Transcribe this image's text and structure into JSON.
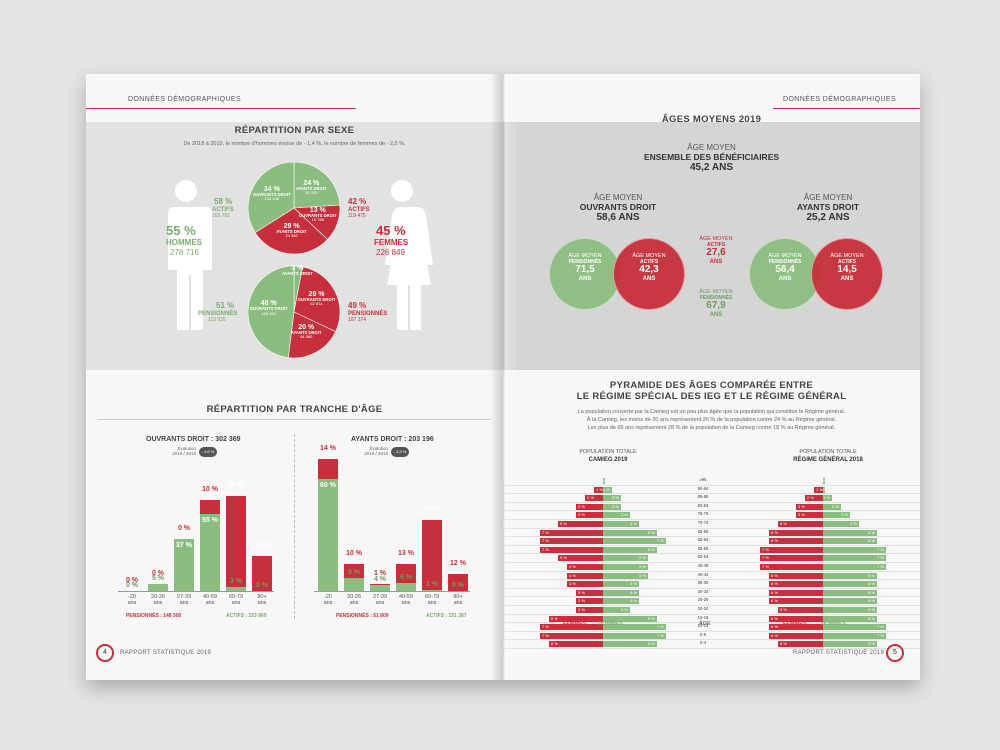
{
  "left": {
    "header": "DONNÉES DÉMOGRAPHIQUES",
    "sexe": {
      "title": "RÉPARTITION PAR SEXE",
      "subtitle": "De 2018 à 2019, le nombre d'hommes évolue de - 1,4  %, le nombre de femmes de - 2,2  %.",
      "hommes": {
        "pct": "55 %",
        "label": "HOMMES",
        "count": "278 716"
      },
      "femmes": {
        "pct": "45 %",
        "label": "FEMMES",
        "count": "226 849"
      },
      "actifs_h": {
        "pct": "58 %",
        "label": "ACTIFS",
        "count": "165 781"
      },
      "actifs_f": {
        "pct": "42 %",
        "label": "ACTIFS",
        "count": "119 475"
      },
      "pens_h": {
        "pct": "51 %",
        "label": "PENSIONNÉS",
        "count": "112 935"
      },
      "pens_f": {
        "pct": "49 %",
        "label": "PENSIONNÉS",
        "count": "107 374"
      },
      "pie1": [
        {
          "pct": "24 %",
          "label": "AYANTS DROIT",
          "sub": "31 333"
        },
        {
          "pct": "13 %",
          "label": "OUVRANTS DROIT",
          "sub": "16 768"
        },
        {
          "pct": "29 %",
          "label": "AYANTS DROIT",
          "sub": "24 382"
        },
        {
          "pct": "34 %",
          "label": "OUVRANTS DROIT",
          "sub": "134 448"
        }
      ],
      "pie2": [
        {
          "pct": "3 %",
          "label": "AYANTS DROIT",
          "sub": ""
        },
        {
          "pct": "29 %",
          "label": "OUVRANTS DROIT",
          "sub": "62 814"
        },
        {
          "pct": "20 %",
          "label": "AYANTS DROIT",
          "sub": "44 560"
        },
        {
          "pct": "48 %",
          "label": "OUVRANTS DROIT",
          "sub": "105 464"
        }
      ]
    },
    "age": {
      "title": "RÉPARTITION PAR TRANCHE D'ÂGE",
      "ouvrants": {
        "title": "OUVRANTS DROIT : 302 369",
        "evo_label": "Évolution\n2018 / 2019",
        "evo": "- 0,6 %",
        "pens_label": "PENSIONNÉS : 148 500",
        "act_label": "ACTIFS : 153 869"
      },
      "ayants": {
        "title": "AYANTS DROIT : 203 196",
        "evo_label": "Évolution\n2018 / 2019",
        "evo": "- 3,3 %",
        "pens_label": "PENSIONNÉS : 51 809",
        "act_label": "ACTIFS : 151 387"
      }
    },
    "footer": "RAPPORT STATISTIQUE 2019",
    "page": "4"
  },
  "right": {
    "header": "DONNÉES DÉMOGRAPHIQUES",
    "ages": {
      "title": "ÂGES MOYENS 2019",
      "ens_l1": "ÂGE MOYEN",
      "ens_l2": "ENSEMBLE DES BÉNÉFICIAIRES",
      "ens_val": "45,2 ANS",
      "od_l1": "ÂGE MOYEN",
      "od_l2": "OUVRANTS DROIT",
      "od_val": "58,6 ANS",
      "ad_l1": "ÂGE MOYEN",
      "ad_l2": "AYANTS DROIT",
      "ad_val": "25,2 ANS",
      "c_od_pens": {
        "l1": "ÂGE MOYEN",
        "l2": "PENSIONNÉS",
        "v": "71,5",
        "u": "ANS"
      },
      "c_od_act": {
        "l1": "ÂGE MOYEN",
        "l2": "ACTIFS",
        "v": "42,3",
        "u": "ANS"
      },
      "c_mid_act": {
        "l1": "ÂGE MOYEN",
        "l2": "ACTIFS",
        "v": "27,6",
        "u": "ANS"
      },
      "c_mid_pens": {
        "l1": "ÂGE MOYEN",
        "l2": "PENSIONNÉS",
        "v": "67,9",
        "u": "ANS"
      },
      "c_ad_pens": {
        "l1": "ÂGE MOYEN",
        "l2": "PENSIONNÉS",
        "v": "56,4",
        "u": "ANS"
      },
      "c_ad_act": {
        "l1": "ÂGE MOYEN",
        "l2": "ACTIFS",
        "v": "14,5",
        "u": "ANS"
      }
    },
    "pyr": {
      "title1": "PYRAMIDE DES ÂGES COMPARÉE ENTRE",
      "title2": "LE RÉGIME SPÉCIAL DES IEG ET LE RÉGIME GÉNÉRAL",
      "text": [
        "La population couverte par la Camieg est un peu plus âgée que la population qui constitue le Régime général.",
        "À la Camieg, les moins de 20 ans représentent 26  % de la population contre 24 % au Régime général.",
        "Les plus de 65 ans représentent 28 % de la population de la Camieg contre 18 % au Régime général."
      ],
      "camieg_l1": "POPULATION TOTALE",
      "camieg_l2": "CAMIEG 2019",
      "rg_l1": "POPULATION TOTALE",
      "rg_l2": "RÉGIME GÉNÉRAL 2018",
      "femmes": "FEMMES",
      "hommes": "HOMMES",
      "age": "ÂGE"
    },
    "footer": "RAPPORT STATISTIQUE 2019",
    "page": "5"
  },
  "chart_data": [
    {
      "type": "bar",
      "title": "OUVRANTS DROIT : 302 369",
      "categories": [
        "-20\nans",
        "20-26\nans",
        "27-39\nans",
        "40-59\nans",
        "60-79\nans",
        "80+\nans"
      ],
      "series": [
        {
          "name": "PENSIONNÉS",
          "values": [
            0,
            0,
            0,
            10,
            65,
            25
          ]
        },
        {
          "name": "ACTIFS",
          "values": [
            0,
            5,
            37,
            55,
            3,
            0
          ]
        }
      ],
      "labels": {
        "pens_sub": [
          "432",
          "362",
          "1 088",
          "14 845",
          "97 446",
          "42 966"
        ],
        "act_sub": [
          "442",
          "6 853",
          "56 975",
          "84 426",
          "5 103",
          ""
        ]
      }
    },
    {
      "type": "bar",
      "title": "AYANTS DROIT : 203 196",
      "categories": [
        "-20\nans",
        "20-26\nans",
        "27-39\nans",
        "40-59\nans",
        "60-79\nans",
        "80+\nans"
      ],
      "series": [
        {
          "name": "PENSIONNÉS",
          "values": [
            14,
            10,
            1,
            13,
            50,
            12
          ]
        },
        {
          "name": "ACTIFS",
          "values": [
            80,
            9,
            4,
            6,
            1,
            0
          ]
        }
      ],
      "labels": {
        "pens_sub": [
          "7 174",
          "5 070",
          "533",
          "6 793",
          "25 957",
          "6 282"
        ],
        "act_sub": [
          "120 652",
          "13 880",
          "6 225",
          "9 485",
          "1 145",
          ""
        ]
      }
    },
    {
      "type": "bar",
      "title": "CAMIEG 2019",
      "categories": [
        "≥95",
        "90-94",
        "85-89",
        "80-84",
        "75-79",
        "70-74",
        "65-69",
        "60-64",
        "55-59",
        "50-54",
        "45-49",
        "40-44",
        "35-39",
        "30-34",
        "25-29",
        "20-24",
        "15-19",
        "10-14",
        "5-9",
        "0-4"
      ],
      "series": [
        {
          "name": "FEMMES",
          "values": [
            0,
            1,
            2,
            3,
            3,
            5,
            7,
            7,
            7,
            5,
            4,
            4,
            4,
            3,
            3,
            3,
            6,
            7,
            7,
            6
          ]
        },
        {
          "name": "HOMMES",
          "values": [
            0,
            1,
            2,
            2,
            3,
            4,
            6,
            7,
            6,
            5,
            5,
            5,
            4,
            4,
            4,
            3,
            6,
            7,
            7,
            6
          ]
        }
      ]
    },
    {
      "type": "bar",
      "title": "RÉGIME GÉNÉRAL 2018",
      "categories": [
        "≥95",
        "90-94",
        "85-89",
        "80-84",
        "75-79",
        "70-74",
        "65-69",
        "60-64",
        "55-59",
        "50-54",
        "45-49",
        "40-44",
        "35-39",
        "30-34",
        "25-29",
        "20-24",
        "15-19",
        "10-14",
        "5-9",
        "0-4"
      ],
      "series": [
        {
          "name": "FEMMES",
          "values": [
            0,
            1,
            2,
            3,
            3,
            5,
            6,
            6,
            7,
            7,
            7,
            6,
            6,
            6,
            6,
            5,
            6,
            6,
            6,
            5
          ]
        },
        {
          "name": "HOMMES",
          "values": [
            0,
            0,
            1,
            2,
            3,
            4,
            6,
            6,
            7,
            7,
            7,
            6,
            6,
            6,
            6,
            6,
            6,
            7,
            7,
            6
          ]
        }
      ]
    }
  ]
}
